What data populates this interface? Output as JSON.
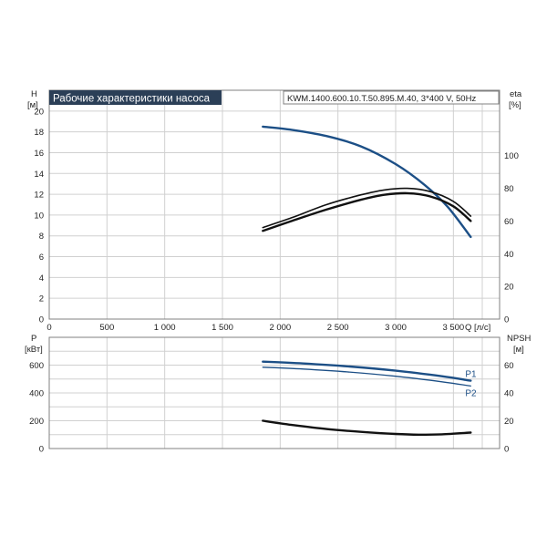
{
  "chart_data": [
    {
      "type": "line",
      "title": "Рабочие характеристики насоса",
      "model_label": "KWM.1400.600.10.T.50.895.M.40, 3*400 V, 50Hz",
      "xlabel": "Q [л/с]",
      "ylabel_left": "H",
      "ylabel_left_unit": "[м]",
      "ylabel_right": "eta",
      "ylabel_right_unit": "[%]",
      "xlim": [
        0,
        3900
      ],
      "ylim_left": [
        0,
        22
      ],
      "ylim_right": [
        0,
        140
      ],
      "x_ticks": [
        "0",
        "500",
        "1 000",
        "1 500",
        "2 000",
        "2 500",
        "3 000",
        "3 500"
      ],
      "y_ticks_left": [
        "0",
        "2",
        "4",
        "6",
        "8",
        "10",
        "12",
        "14",
        "16",
        "18",
        "20"
      ],
      "y_ticks_right": [
        "0",
        "20",
        "40",
        "60",
        "80",
        "100"
      ],
      "series": [
        {
          "axis": "left",
          "color": "#1c4f86",
          "x": [
            1850,
            2100,
            2400,
            2700,
            3000,
            3250,
            3450,
            3650
          ],
          "values": [
            18.5,
            18.2,
            17.6,
            16.6,
            14.9,
            12.9,
            10.8,
            7.9
          ]
        },
        {
          "axis": "right",
          "color": "#111111",
          "x": [
            1850,
            2100,
            2400,
            2700,
            2900,
            3100,
            3300,
            3500,
            3650
          ],
          "values": [
            56,
            62,
            70,
            76,
            79,
            80,
            78,
            72,
            63
          ]
        },
        {
          "axis": "right",
          "color": "#111111",
          "x": [
            1850,
            2100,
            2400,
            2700,
            2900,
            3100,
            3300,
            3500,
            3650
          ],
          "values": [
            54,
            60,
            67,
            73,
            76,
            77,
            75,
            69,
            60
          ]
        }
      ]
    },
    {
      "type": "line",
      "ylabel_left": "P",
      "ylabel_left_unit": "[кВт]",
      "ylabel_right": "NPSH",
      "ylabel_right_unit": "[м]",
      "xlim": [
        0,
        3900
      ],
      "ylim_left": [
        0,
        800
      ],
      "ylim_right": [
        0,
        80
      ],
      "y_ticks_left": [
        "0",
        "200",
        "400",
        "600"
      ],
      "y_ticks_right": [
        "0",
        "20",
        "40",
        "60"
      ],
      "series": [
        {
          "name": "P1",
          "axis": "left",
          "color": "#1c4f86",
          "x": [
            1850,
            2200,
            2600,
            3000,
            3400,
            3650
          ],
          "values": [
            625,
            612,
            590,
            560,
            520,
            488
          ]
        },
        {
          "name": "P2",
          "axis": "left",
          "color": "#1c4f86",
          "x": [
            1850,
            2200,
            2600,
            3000,
            3400,
            3650
          ],
          "values": [
            585,
            572,
            550,
            520,
            480,
            450
          ]
        },
        {
          "axis": "right",
          "color": "#111111",
          "x": [
            1850,
            2100,
            2400,
            2700,
            3000,
            3200,
            3400,
            3650
          ],
          "values": [
            20,
            17,
            14,
            12,
            10.5,
            10,
            10.2,
            11.5
          ]
        }
      ]
    }
  ]
}
